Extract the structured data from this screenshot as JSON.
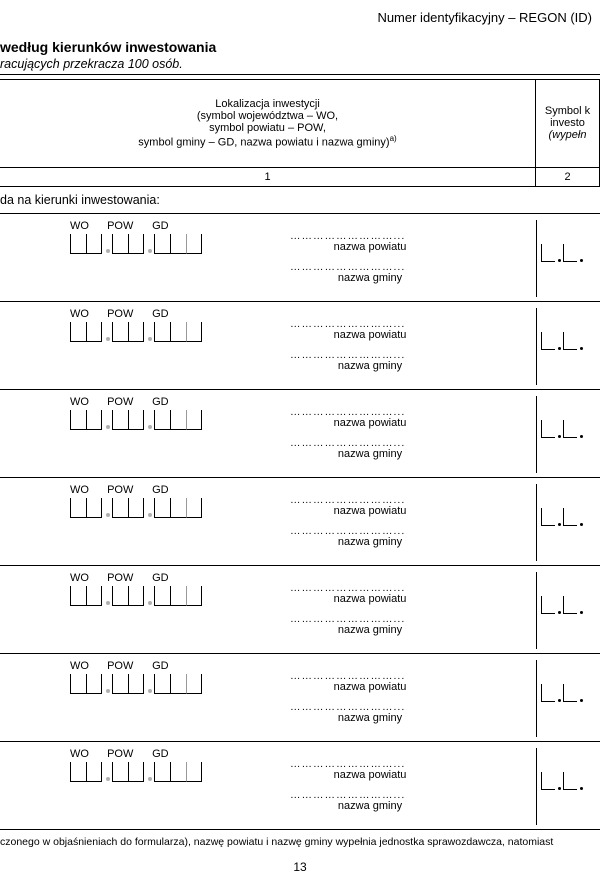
{
  "header": {
    "right": "Numer identyfikacyjny – REGON (ID)"
  },
  "section": {
    "title": "według kierunków inwestowania",
    "subtitle": "racujących przekracza 100 osób."
  },
  "table": {
    "col1_header_l1": "Lokalizacja inwestycji",
    "col1_header_l2": "(symbol województwa – WO,",
    "col1_header_l3": "symbol powiatu – POW,",
    "col1_header_l4": "symbol gminy – GD, nazwa powiatu i nazwa gminy)",
    "col1_header_sup": "a)",
    "col2_header_l1": "Symbol k",
    "col2_header_l2": "investo",
    "col2_header_l3": "(wypełn",
    "colnum1": "1",
    "colnum2": "2",
    "subheader": "da na kierunki inwestowania:"
  },
  "row_labels": {
    "wo": "WO",
    "pow": "POW",
    "gd": "GD",
    "dots": "………………………...",
    "powiat": "nazwa powiatu",
    "gmina": "nazwa gminy"
  },
  "rows": [
    1,
    2,
    3,
    4,
    5,
    6,
    7
  ],
  "footnote": "czonego w objaśnieniach do formularza), nazwę powiatu i nazwę gminy wypełnia jednostka sprawozdawcza, natomiast",
  "page_number": "13",
  "colors": {
    "text": "#000000",
    "bg": "#ffffff",
    "gray": "#999999"
  },
  "fonts": {
    "body": 11,
    "title": 14,
    "sub": 12.5
  }
}
